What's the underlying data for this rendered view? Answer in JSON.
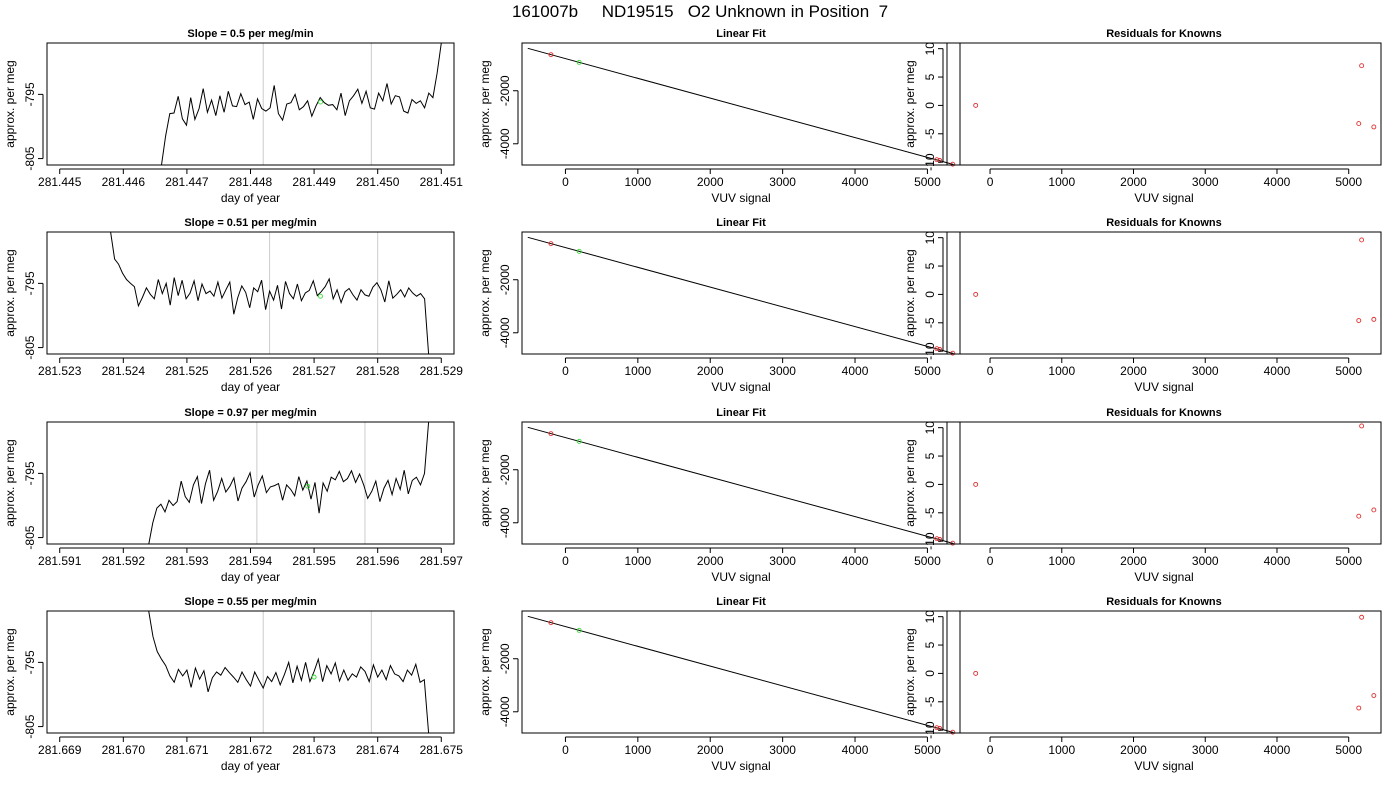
{
  "figure": {
    "title": "161007b     ND19515   O2 Unknown in Position  7"
  },
  "colors": {
    "line": "#000000",
    "known_points": "#e03030",
    "unknown_point": "#33dd33",
    "vertical_markers": "#cccccc",
    "frame": "#000000"
  },
  "chart_data": [
    {
      "type": "line",
      "title": "Slope =  0.5  per meg/min",
      "xlabel": "day of year",
      "ylabel": "approx. per meg",
      "xlim": [
        281.4448,
        281.4512
      ],
      "ylim": [
        -806,
        -787
      ],
      "xticks": [
        281.445,
        281.446,
        281.447,
        281.448,
        281.449,
        281.45,
        281.451
      ],
      "xtick_labels": [
        "281.445",
        "281.446",
        "281.447",
        "281.448",
        "281.449",
        "281.450",
        "281.451"
      ],
      "yticks": [
        -795,
        -805
      ],
      "ytick_labels": [
        "-795",
        "-805"
      ],
      "vlines": [
        281.4482,
        281.4499
      ],
      "unknown_point": {
        "x": 281.4491,
        "y": -796.2
      },
      "series": [
        {
          "x_start": 281.4466,
          "x_end": 281.451,
          "values": [
            -806.0,
            -801.5,
            -798.0,
            -797.9,
            -795.3,
            -798.8,
            -799.8,
            -795.5,
            -798.9,
            -797.2,
            -794.1,
            -797.8,
            -795.9,
            -798.3,
            -795.2,
            -797.8,
            -794.5,
            -796.8,
            -796.9,
            -794.9,
            -796.6,
            -796.2,
            -798.9,
            -795.7,
            -797.2,
            -797.6,
            -797.1,
            -793.6,
            -798.0,
            -799.0,
            -796.5,
            -796.3,
            -795.0,
            -797.4,
            -796.9,
            -796.0,
            -798.4,
            -796.8,
            -795.5,
            -796.3,
            -796.7,
            -796.6,
            -797.4,
            -794.8,
            -798.3,
            -796.0,
            -795.2,
            -794.2,
            -796.4,
            -794.5,
            -797.1,
            -797.3,
            -794.8,
            -796.0,
            -793.3,
            -796.5,
            -795.2,
            -795.4,
            -797.6,
            -797.9,
            -795.8,
            -796.4,
            -796.0,
            -797.1,
            -794.8,
            -795.5,
            -791.7,
            -787.0
          ]
        }
      ]
    },
    {
      "type": "scatter",
      "title": "Linear Fit",
      "xlabel": "VUV signal",
      "ylabel": "approx. per meg",
      "xlim": [
        -600,
        5450
      ],
      "ylim": [
        -4800,
        -200
      ],
      "xticks": [
        0,
        1000,
        2000,
        3000,
        4000,
        5000
      ],
      "xtick_labels": [
        "0",
        "1000",
        "2000",
        "3000",
        "4000",
        "5000"
      ],
      "yticks": [
        -2000,
        -4000
      ],
      "ytick_labels": [
        "-2000",
        "-4000"
      ],
      "fit_line": {
        "x": [
          -520,
          5360
        ],
        "y": [
          -400,
          -4780
        ]
      },
      "known_points": {
        "x": [
          -200,
          5130,
          5170,
          5350
        ],
        "y": [
          -640,
          -4600,
          -4630,
          -4770
        ]
      },
      "unknown_point": {
        "x": 190,
        "y": -930
      }
    },
    {
      "type": "scatter",
      "title": "Residuals for Knowns",
      "xlabel": "VUV signal",
      "ylabel": "approx. per meg",
      "xlim": [
        -600,
        5450
      ],
      "ylim": [
        -10.5,
        11
      ],
      "xticks": [
        0,
        1000,
        2000,
        3000,
        4000,
        5000
      ],
      "xtick_labels": [
        "0",
        "1000",
        "2000",
        "3000",
        "4000",
        "5000"
      ],
      "yticks": [
        10,
        5,
        0,
        -5,
        -10
      ],
      "ytick_labels": [
        "10",
        "5",
        "0",
        "-5",
        "-10"
      ],
      "known_points": {
        "x": [
          -200,
          5140,
          5180,
          5350
        ],
        "y": [
          0,
          -3.2,
          7.0,
          -3.8
        ]
      }
    },
    {
      "type": "line",
      "title": "Slope =  0.51  per meg/min",
      "xlabel": "day of year",
      "ylabel": "approx. per meg",
      "xlim": [
        281.5228,
        281.5292
      ],
      "ylim": [
        -806,
        -787
      ],
      "xticks": [
        281.523,
        281.524,
        281.525,
        281.526,
        281.527,
        281.528,
        281.529
      ],
      "xtick_labels": [
        "281.523",
        "281.524",
        "281.525",
        "281.526",
        "281.527",
        "281.528",
        "281.529"
      ],
      "yticks": [
        -795,
        -805
      ],
      "ytick_labels": [
        "-795",
        "-805"
      ],
      "vlines": [
        281.5263,
        281.528
      ],
      "unknown_point": {
        "x": 281.5271,
        "y": -797.0
      },
      "series": [
        {
          "x_start": 281.5238,
          "x_end": 281.5288,
          "values": [
            -787.0,
            -791.2,
            -792.0,
            -793.4,
            -794.4,
            -795.0,
            -795.5,
            -798.5,
            -797.2,
            -795.7,
            -796.7,
            -797.4,
            -794.4,
            -796.6,
            -795.0,
            -798.4,
            -794.1,
            -796.9,
            -794.5,
            -797.4,
            -796.5,
            -794.6,
            -797.7,
            -795.1,
            -796.6,
            -796.2,
            -797.0,
            -794.8,
            -797.3,
            -796.0,
            -794.8,
            -799.8,
            -797.2,
            -795.4,
            -796.4,
            -798.8,
            -795.7,
            -796.3,
            -794.5,
            -799.1,
            -796.2,
            -797.6,
            -795.3,
            -799.0,
            -794.7,
            -796.6,
            -797.4,
            -795.1,
            -797.7,
            -796.5,
            -796.1,
            -794.6,
            -796.9,
            -796.3,
            -795.5,
            -794.3,
            -797.4,
            -796.0,
            -798.0,
            -796.3,
            -795.8,
            -796.8,
            -797.6,
            -796.0,
            -796.8,
            -797.0,
            -795.6,
            -794.9,
            -796.0,
            -797.9,
            -794.6,
            -797.3,
            -796.7,
            -796.0,
            -797.1,
            -795.7,
            -796.5,
            -797.0,
            -796.6,
            -797.4,
            -806.0
          ]
        }
      ]
    },
    {
      "type": "scatter",
      "title": "Linear Fit",
      "xlabel": "VUV signal",
      "ylabel": "approx. per meg",
      "xlim": [
        -600,
        5450
      ],
      "ylim": [
        -4800,
        -200
      ],
      "xticks": [
        0,
        1000,
        2000,
        3000,
        4000,
        5000
      ],
      "xtick_labels": [
        "0",
        "1000",
        "2000",
        "3000",
        "4000",
        "5000"
      ],
      "yticks": [
        -2000,
        -4000
      ],
      "ytick_labels": [
        "-2000",
        "-4000"
      ],
      "fit_line": {
        "x": [
          -520,
          5360
        ],
        "y": [
          -400,
          -4780
        ]
      },
      "known_points": {
        "x": [
          -200,
          5130,
          5170,
          5350
        ],
        "y": [
          -640,
          -4600,
          -4630,
          -4770
        ]
      },
      "unknown_point": {
        "x": 190,
        "y": -930
      }
    },
    {
      "type": "scatter",
      "title": "Residuals for Knowns",
      "xlabel": "VUV signal",
      "ylabel": "approx. per meg",
      "xlim": [
        -600,
        5450
      ],
      "ylim": [
        -10.5,
        11
      ],
      "xticks": [
        0,
        1000,
        2000,
        3000,
        4000,
        5000
      ],
      "xtick_labels": [
        "0",
        "1000",
        "2000",
        "3000",
        "4000",
        "5000"
      ],
      "yticks": [
        10,
        5,
        0,
        -5,
        -10
      ],
      "ytick_labels": [
        "10",
        "5",
        "0",
        "-5",
        "-10"
      ],
      "known_points": {
        "x": [
          -200,
          5140,
          5180,
          5350
        ],
        "y": [
          0,
          -4.6,
          9.6,
          -4.4
        ]
      }
    },
    {
      "type": "line",
      "title": "Slope =  0.97  per meg/min",
      "xlabel": "day of year",
      "ylabel": "approx. per meg",
      "xlim": [
        281.5908,
        281.5972
      ],
      "ylim": [
        -806,
        -787
      ],
      "xticks": [
        281.591,
        281.592,
        281.593,
        281.594,
        281.595,
        281.596,
        281.597
      ],
      "xtick_labels": [
        "281.591",
        "281.592",
        "281.593",
        "281.594",
        "281.595",
        "281.596",
        "281.597"
      ],
      "vlines": [
        281.5941,
        281.5958
      ],
      "yticks": [
        -795,
        -805
      ],
      "ytick_labels": [
        "-795",
        "-805"
      ],
      "unknown_point": {
        "x": 281.5949,
        "y": -797.0
      },
      "series": [
        {
          "x_start": 281.5924,
          "x_end": 281.5968,
          "values": [
            -806.0,
            -802.7,
            -800.4,
            -799.8,
            -801.0,
            -799.2,
            -800.0,
            -799.4,
            -796.2,
            -798.6,
            -799.5,
            -796.8,
            -795.5,
            -799.7,
            -796.6,
            -794.5,
            -799.2,
            -797.8,
            -795.8,
            -797.9,
            -797.0,
            -795.7,
            -799.3,
            -797.3,
            -796.3,
            -794.9,
            -798.7,
            -796.8,
            -795.4,
            -798.0,
            -797.1,
            -796.9,
            -796.6,
            -799.2,
            -796.8,
            -797.5,
            -798.5,
            -795.5,
            -797.6,
            -796.2,
            -799.0,
            -796.4,
            -801.2,
            -796.5,
            -797.8,
            -795.6,
            -796.0,
            -794.7,
            -796.3,
            -795.8,
            -794.6,
            -796.4,
            -795.1,
            -796.8,
            -798.9,
            -797.8,
            -796.2,
            -799.4,
            -797.3,
            -796.1,
            -798.3,
            -795.8,
            -797.5,
            -794.5,
            -798.2,
            -796.1,
            -795.6,
            -796.8,
            -795.0,
            -787.0
          ]
        }
      ]
    },
    {
      "type": "scatter",
      "title": "Linear Fit",
      "xlabel": "VUV signal",
      "ylabel": "approx. per meg",
      "xlim": [
        -600,
        5450
      ],
      "ylim": [
        -4800,
        -200
      ],
      "xticks": [
        0,
        1000,
        2000,
        3000,
        4000,
        5000
      ],
      "xtick_labels": [
        "0",
        "1000",
        "2000",
        "3000",
        "4000",
        "5000"
      ],
      "yticks": [
        -2000,
        -4000
      ],
      "ytick_labels": [
        "-2000",
        "-4000"
      ],
      "fit_line": {
        "x": [
          -520,
          5360
        ],
        "y": [
          -400,
          -4780
        ]
      },
      "known_points": {
        "x": [
          -200,
          5130,
          5170,
          5350
        ],
        "y": [
          -640,
          -4600,
          -4630,
          -4770
        ]
      },
      "unknown_point": {
        "x": 190,
        "y": -930
      }
    },
    {
      "type": "scatter",
      "title": "Residuals for Knowns",
      "xlabel": "VUV signal",
      "ylabel": "approx. per meg",
      "xlim": [
        -600,
        5450
      ],
      "ylim": [
        -10.5,
        11
      ],
      "xticks": [
        0,
        1000,
        2000,
        3000,
        4000,
        5000
      ],
      "xtick_labels": [
        "0",
        "1000",
        "2000",
        "3000",
        "4000",
        "5000"
      ],
      "yticks": [
        10,
        5,
        0,
        -5,
        -10
      ],
      "ytick_labels": [
        "10",
        "5",
        "0",
        "-5",
        "-10"
      ],
      "known_points": {
        "x": [
          -200,
          5140,
          5180,
          5350
        ],
        "y": [
          0,
          -5.6,
          10.3,
          -4.5
        ]
      }
    },
    {
      "type": "line",
      "title": "Slope =  0.55  per meg/min",
      "xlabel": "day of year",
      "ylabel": "approx. per meg",
      "xlim": [
        281.6688,
        281.6752
      ],
      "ylim": [
        -806,
        -787
      ],
      "xticks": [
        281.669,
        281.67,
        281.671,
        281.672,
        281.673,
        281.674,
        281.675
      ],
      "xtick_labels": [
        "281.669",
        "281.670",
        "281.671",
        "281.672",
        "281.673",
        "281.674",
        "281.675"
      ],
      "yticks": [
        -795,
        -805
      ],
      "ytick_labels": [
        "-795",
        "-805"
      ],
      "vlines": [
        281.6722,
        281.6739
      ],
      "unknown_point": {
        "x": 281.673,
        "y": -797.3
      },
      "series": [
        {
          "x_start": 281.6704,
          "x_end": 281.6748,
          "values": [
            -787.0,
            -791.0,
            -793.3,
            -794.5,
            -795.5,
            -797.1,
            -798.1,
            -796.1,
            -797.1,
            -796.2,
            -798.9,
            -795.9,
            -797.6,
            -796.3,
            -799.6,
            -797.4,
            -796.5,
            -797.0,
            -795.8,
            -796.6,
            -797.3,
            -798.1,
            -796.5,
            -797.7,
            -798.7,
            -796.5,
            -797.8,
            -799.0,
            -797.2,
            -798.0,
            -796.6,
            -798.5,
            -796.9,
            -795.0,
            -798.2,
            -795.6,
            -797.8,
            -795.0,
            -798.0,
            -796.4,
            -794.5,
            -798.0,
            -795.5,
            -796.8,
            -795.1,
            -797.9,
            -796.2,
            -797.8,
            -796.8,
            -797.3,
            -795.7,
            -796.4,
            -798.0,
            -795.4,
            -797.3,
            -796.2,
            -797.7,
            -795.5,
            -796.8,
            -797.1,
            -798.0,
            -796.2,
            -797.0,
            -795.3,
            -798.1,
            -797.7,
            -806.0
          ]
        }
      ]
    },
    {
      "type": "scatter",
      "title": "Linear Fit",
      "xlabel": "VUV signal",
      "ylabel": "approx. per meg",
      "xlim": [
        -600,
        5450
      ],
      "ylim": [
        -4800,
        -200
      ],
      "xticks": [
        0,
        1000,
        2000,
        3000,
        4000,
        5000
      ],
      "xtick_labels": [
        "0",
        "1000",
        "2000",
        "3000",
        "4000",
        "5000"
      ],
      "yticks": [
        -2000,
        -4000
      ],
      "ytick_labels": [
        "-2000",
        "-4000"
      ],
      "fit_line": {
        "x": [
          -520,
          5360
        ],
        "y": [
          -400,
          -4780
        ]
      },
      "known_points": {
        "x": [
          -200,
          5130,
          5170,
          5350
        ],
        "y": [
          -640,
          -4600,
          -4630,
          -4770
        ]
      },
      "unknown_point": {
        "x": 190,
        "y": -930
      }
    },
    {
      "type": "scatter",
      "title": "Residuals for Knowns",
      "xlabel": "VUV signal",
      "ylabel": "approx. per meg",
      "xlim": [
        -600,
        5450
      ],
      "ylim": [
        -10.5,
        11
      ],
      "xticks": [
        0,
        1000,
        2000,
        3000,
        4000,
        5000
      ],
      "xtick_labels": [
        "0",
        "1000",
        "2000",
        "3000",
        "4000",
        "5000"
      ],
      "yticks": [
        10,
        5,
        0,
        -5,
        -10
      ],
      "ytick_labels": [
        "10",
        "5",
        "0",
        "-5",
        "-10"
      ],
      "known_points": {
        "x": [
          -200,
          5140,
          5180,
          5350
        ],
        "y": [
          0,
          -6.1,
          9.9,
          -3.9
        ]
      }
    }
  ]
}
